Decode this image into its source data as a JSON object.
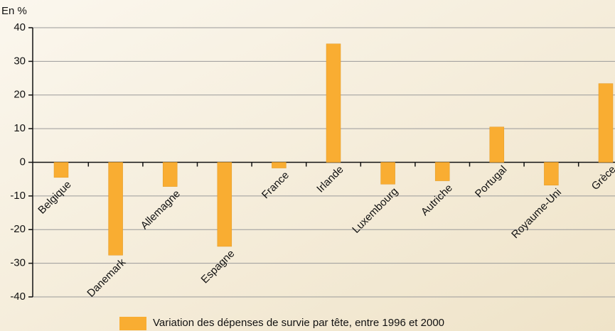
{
  "chart_data": {
    "type": "bar",
    "y_label": "En %",
    "categories": [
      "Belgique",
      "Danemark",
      "Allemagne",
      "Espagne",
      "France",
      "Irlande",
      "Luxembourg",
      "Autriche",
      "Portugal",
      "Royaume-Uni",
      "Grèce"
    ],
    "series": [
      {
        "name": "Variation des dépenses de survie par tête, entre 1996 et 2000",
        "color": "#f9ad32",
        "values": [
          -4.5,
          -27.6,
          -7.2,
          -25,
          -1.7,
          35.2,
          -6.5,
          -5.5,
          10.5,
          -6.8,
          23.4
        ]
      }
    ],
    "ylim": [
      -40,
      40
    ],
    "yticks": [
      -40,
      -30,
      -20,
      -10,
      0,
      10,
      20,
      30,
      40
    ],
    "grid": true
  }
}
